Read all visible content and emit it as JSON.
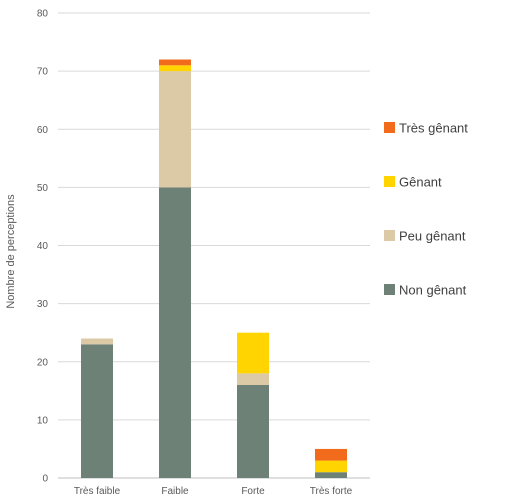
{
  "chart_data": {
    "type": "bar",
    "stacked": true,
    "categories": [
      "Très faible",
      "Faible",
      "Forte",
      "Très forte"
    ],
    "series": [
      {
        "name": "Non gênant",
        "color": "#6E8177",
        "values": [
          23,
          50,
          16,
          1
        ]
      },
      {
        "name": "Peu gênant",
        "color": "#DCC9A5",
        "values": [
          1,
          20,
          2,
          0
        ]
      },
      {
        "name": "Gênant",
        "color": "#FFD400",
        "values": [
          0,
          1,
          7,
          2
        ]
      },
      {
        "name": "Très gênant",
        "color": "#F26B1D",
        "values": [
          0,
          1,
          0,
          2
        ]
      }
    ],
    "legend_order": [
      "Très gênant",
      "Gênant",
      "Peu gênant",
      "Non gênant"
    ],
    "legend_position": "right",
    "title": "",
    "xlabel": "",
    "ylabel": "Nombre de perceptions",
    "ylim": [
      0,
      80
    ],
    "yticks": [
      0,
      10,
      20,
      30,
      40,
      50,
      60,
      70,
      80
    ],
    "grid": true,
    "grid_color": "#D9D9D9"
  }
}
